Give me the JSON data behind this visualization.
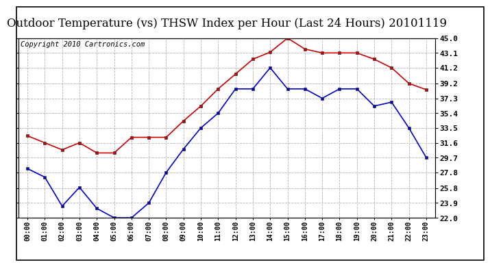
{
  "title": "Outdoor Temperature (vs) THSW Index per Hour (Last 24 Hours) 20101119",
  "copyright": "Copyright 2010 Cartronics.com",
  "hours": [
    "00:00",
    "01:00",
    "02:00",
    "03:00",
    "04:00",
    "05:00",
    "06:00",
    "07:00",
    "08:00",
    "09:00",
    "10:00",
    "11:00",
    "12:00",
    "13:00",
    "14:00",
    "15:00",
    "16:00",
    "17:00",
    "18:00",
    "19:00",
    "20:00",
    "21:00",
    "22:00",
    "23:00"
  ],
  "blue_data": [
    28.3,
    27.2,
    23.5,
    25.9,
    23.2,
    22.0,
    22.0,
    23.9,
    27.8,
    30.8,
    33.5,
    35.4,
    38.5,
    38.5,
    41.2,
    38.5,
    38.5,
    37.3,
    38.5,
    38.5,
    36.3,
    36.8,
    33.5,
    29.7
  ],
  "red_data": [
    32.5,
    31.6,
    30.7,
    31.6,
    30.3,
    30.3,
    32.3,
    32.3,
    32.3,
    34.4,
    36.3,
    38.5,
    40.4,
    42.3,
    43.2,
    45.0,
    43.6,
    43.1,
    43.1,
    43.1,
    42.3,
    41.2,
    39.2,
    38.4
  ],
  "yticks": [
    22.0,
    23.9,
    25.8,
    27.8,
    29.7,
    31.6,
    33.5,
    35.4,
    37.3,
    39.2,
    41.2,
    43.1,
    45.0
  ],
  "ytick_labels": [
    "22.0",
    "23.9",
    "25.8",
    "27.8",
    "29.7",
    "31.6",
    "33.5",
    "35.4",
    "37.3",
    "39.2",
    "41.2",
    "43.1",
    "45.0"
  ],
  "ymin": 22.0,
  "ymax": 45.0,
  "blue_color": "#0000cc",
  "red_color": "#cc0000",
  "bg_color": "#ffffff",
  "grid_color": "#aaaaaa",
  "title_fontsize": 12,
  "copyright_fontsize": 7.5
}
